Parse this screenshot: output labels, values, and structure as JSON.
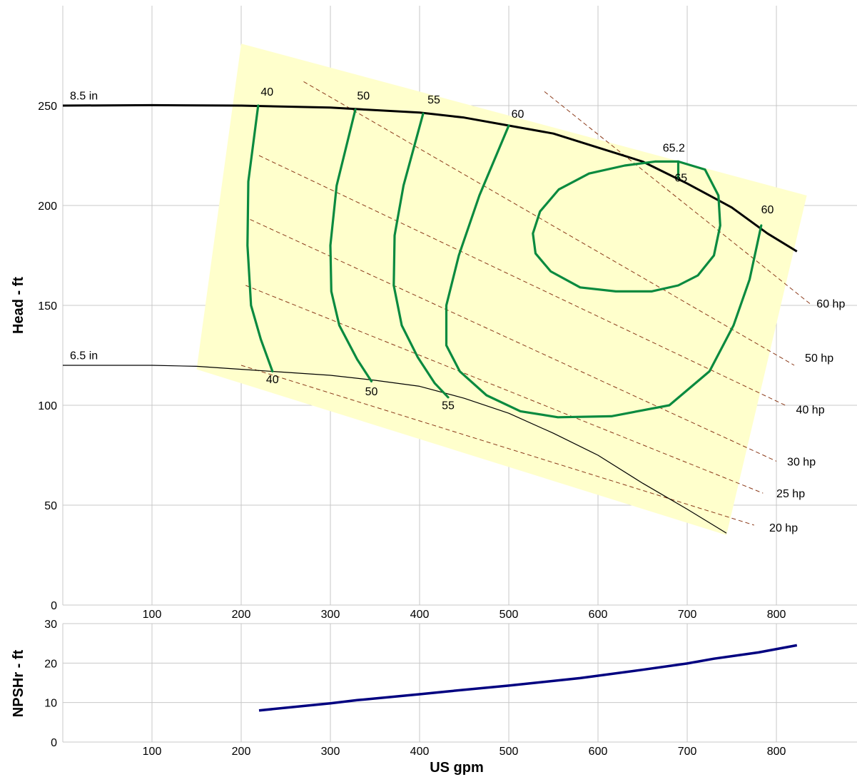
{
  "chart_data": [
    {
      "type": "line",
      "subtype": "pump performance curve",
      "ylabel": "Head - ft",
      "xlim": [
        0,
        890
      ],
      "ylim": [
        0,
        300
      ],
      "x_ticks": [
        "100",
        "200",
        "300",
        "400",
        "500",
        "600",
        "700",
        "800"
      ],
      "y_ticks": [
        "0",
        "50",
        "100",
        "150",
        "200",
        "250"
      ],
      "grid": true,
      "colors": {
        "impeller": "#000000",
        "efficiency": "#0a8a3f",
        "power": "#8b3a1a",
        "region": "#ffffcc",
        "grid": "#c8c8c8"
      },
      "operating_region": [
        [
          200,
          281
        ],
        [
          834,
          205
        ],
        [
          744,
          35
        ],
        [
          150,
          118
        ]
      ],
      "impeller_curves": [
        {
          "name": "8.5 in",
          "x": [
            0,
            100,
            200,
            300,
            400,
            450,
            500,
            550,
            600,
            650,
            700,
            750,
            790,
            823
          ],
          "y": [
            250,
            250.2,
            250,
            249,
            246.5,
            244,
            240,
            236,
            229,
            222,
            211,
            199,
            186,
            177
          ]
        },
        {
          "name": "6.5 in",
          "x": [
            0,
            100,
            150,
            200,
            300,
            350,
            400,
            450,
            500,
            550,
            600,
            650,
            700,
            744
          ],
          "y": [
            120,
            120,
            119.5,
            118,
            115,
            112.5,
            109.5,
            103.5,
            96,
            86,
            75,
            61,
            48,
            36
          ]
        }
      ],
      "efficiency_curves": [
        {
          "label": "40",
          "x": [
            219,
            208,
            207,
            211,
            222,
            235
          ],
          "y": [
            250,
            212,
            180,
            150,
            133,
            117
          ]
        },
        {
          "label": "50",
          "x": [
            328,
            307,
            300,
            301,
            310,
            330,
            346
          ],
          "y": [
            248,
            210,
            180,
            157,
            140,
            123,
            112
          ]
        },
        {
          "label": "55",
          "x": [
            404,
            382,
            372,
            371,
            380,
            398,
            417,
            432
          ],
          "y": [
            246,
            210,
            185,
            160,
            140,
            124,
            111,
            104
          ]
        },
        {
          "label": "60",
          "x": [
            500,
            467,
            444,
            430,
            430,
            445,
            475,
            513,
            555,
            615,
            680,
            725,
            752,
            770,
            783
          ],
          "y": [
            240,
            205,
            175,
            150,
            130,
            117,
            105,
            97,
            94,
            94.5,
            100,
            117,
            140,
            163,
            190
          ]
        },
        {
          "label": "65.2",
          "closed": true,
          "x": [
            690,
            720,
            735,
            737,
            730,
            712,
            690,
            660,
            620,
            580,
            547,
            530,
            527,
            535,
            556,
            590,
            630,
            664,
            690
          ],
          "y": [
            222,
            218,
            205,
            190,
            175,
            165,
            160,
            157,
            157,
            159,
            167,
            176,
            186,
            197,
            208,
            216,
            220,
            222,
            222
          ]
        },
        {
          "label": "65",
          "x": [
            690,
            690
          ],
          "y": [
            222,
            214
          ]
        }
      ],
      "efficiency_labels": [
        {
          "text": "40",
          "x": 229,
          "y": 255
        },
        {
          "text": "50",
          "x": 337,
          "y": 253
        },
        {
          "text": "55",
          "x": 416,
          "y": 251
        },
        {
          "text": "60",
          "x": 510,
          "y": 244
        },
        {
          "text": "65.2",
          "x": 685,
          "y": 227
        },
        {
          "text": "65",
          "x": 693,
          "y": 212
        },
        {
          "text": "60",
          "x": 790,
          "y": 196
        },
        {
          "text": "40",
          "x": 235,
          "y": 111
        },
        {
          "text": "50",
          "x": 346,
          "y": 105
        },
        {
          "text": "55",
          "x": 432,
          "y": 98
        }
      ],
      "power_curves": [
        {
          "label": "60 hp",
          "x": [
            540,
            840
          ],
          "y": [
            257,
            150
          ]
        },
        {
          "label": "50 hp",
          "x": [
            270,
            820
          ],
          "y": [
            262,
            120
          ]
        },
        {
          "label": "40 hp",
          "x": [
            220,
            810
          ],
          "y": [
            225,
            100
          ]
        },
        {
          "label": "30 hp",
          "x": [
            210,
            800
          ],
          "y": [
            193,
            72
          ]
        },
        {
          "label": "25 hp",
          "x": [
            205,
            785
          ],
          "y": [
            160,
            56
          ]
        },
        {
          "label": "20 hp",
          "x": [
            200,
            775
          ],
          "y": [
            120,
            40
          ]
        }
      ],
      "power_labels": [
        {
          "text": "60 hp",
          "x": 845,
          "y": 151
        },
        {
          "text": "50 hp",
          "x": 832,
          "y": 124
        },
        {
          "text": "40 hp",
          "x": 822,
          "y": 98
        },
        {
          "text": "30 hp",
          "x": 812,
          "y": 72
        },
        {
          "text": "25 hp",
          "x": 800,
          "y": 56
        },
        {
          "text": "20 hp",
          "x": 792,
          "y": 39
        }
      ],
      "impeller_labels": [
        {
          "text": "8.5 in",
          "x": 8,
          "y": 253
        },
        {
          "text": "6.5 in",
          "x": 8,
          "y": 123
        }
      ]
    },
    {
      "type": "line",
      "xlabel": "US gpm",
      "ylabel": "NPSHr - ft",
      "xlim": [
        0,
        890
      ],
      "ylim": [
        0,
        30
      ],
      "x_ticks": [
        "100",
        "200",
        "300",
        "400",
        "500",
        "600",
        "700",
        "800"
      ],
      "y_ticks": [
        "0",
        "10",
        "20",
        "30"
      ],
      "grid": true,
      "colors": {
        "npshr": "#000080"
      },
      "series": [
        {
          "x": [
            220,
            300,
            330,
            400,
            430,
            500,
            580,
            650,
            700,
            730,
            780,
            823
          ],
          "y": [
            8,
            9.8,
            10.6,
            12.1,
            12.8,
            14.3,
            16.2,
            18.3,
            19.9,
            21.1,
            22.7,
            24.5
          ]
        }
      ]
    }
  ]
}
